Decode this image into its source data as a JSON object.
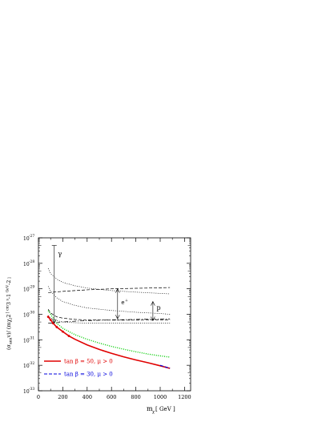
{
  "chart_data": {
    "type": "line",
    "xlabel": "m",
    "xlabel_sub": "χ",
    "xlabel_unit": " [ GeV ]",
    "ylabel_parts": [
      "(σ",
      "ann",
      "v)/ (m",
      "χ",
      ")",
      "2",
      " [ cm",
      "3",
      " s",
      "-1",
      " GeV",
      "-2",
      " ]"
    ],
    "x_ticks": [
      0,
      200,
      400,
      600,
      800,
      1000,
      1200
    ],
    "x_range": [
      0,
      1250
    ],
    "y_ticks": [
      {
        "exp": -27,
        "label": "10",
        "sup": "-27"
      },
      {
        "exp": -28,
        "label": "10",
        "sup": "-28"
      },
      {
        "exp": -29,
        "label": "10",
        "sup": "-29"
      },
      {
        "exp": -30,
        "label": "10",
        "sup": "-30"
      },
      {
        "exp": -31,
        "label": "10",
        "sup": "-31"
      },
      {
        "exp": -32,
        "label": "10",
        "sup": "-32"
      },
      {
        "exp": -33,
        "label": "10",
        "sup": "-33"
      }
    ],
    "y_range_log10": [
      -33,
      -27
    ],
    "y_scale": "log",
    "series": [
      {
        "name": "tan β = 50, μ > 0",
        "color": "#e00000",
        "style": "solid",
        "x": [
          80,
          100,
          120,
          150,
          200,
          250,
          300,
          400,
          500,
          600,
          700,
          800,
          900,
          1000,
          1080
        ],
        "log10_y": [
          -30.1,
          -30.22,
          -30.35,
          -30.5,
          -30.68,
          -30.85,
          -30.98,
          -31.2,
          -31.38,
          -31.53,
          -31.67,
          -31.79,
          -31.9,
          -32.02,
          -32.12
        ]
      },
      {
        "name": "tan β = 30, μ > 0",
        "color": "#0000dd",
        "style": "dashed",
        "x": [
          1000,
          1040,
          1080
        ],
        "log10_y": [
          -32.0,
          -32.06,
          -32.12
        ]
      },
      {
        "name": "",
        "color": "#00cc00",
        "style": "dotted",
        "x": [
          80,
          100,
          150,
          200,
          300,
          400,
          500,
          600,
          700,
          800,
          900,
          1000,
          1080
        ],
        "log10_y": [
          -29.85,
          -30.0,
          -30.35,
          -30.55,
          -30.8,
          -30.98,
          -31.13,
          -31.26,
          -31.37,
          -31.47,
          -31.56,
          -31.63,
          -31.68
        ]
      }
    ],
    "limit_curves": [
      {
        "label": "γ",
        "style": "dotted",
        "x": [
          80,
          100,
          150,
          200,
          300,
          400,
          600,
          800,
          1000,
          1080
        ],
        "log10_y": [
          -28.2,
          -28.4,
          -28.62,
          -28.75,
          -28.88,
          -28.97,
          -29.07,
          -29.13,
          -29.18,
          -29.2
        ]
      },
      {
        "label": "",
        "style": "dashed",
        "x": [
          80,
          150,
          200,
          300,
          400,
          600,
          800,
          1000,
          1080
        ],
        "log10_y": [
          -29.15,
          -29.12,
          -29.1,
          -29.07,
          -29.04,
          -29.0,
          -28.98,
          -28.96,
          -28.95
        ]
      },
      {
        "label": "e+",
        "style": "dotted",
        "x": [
          80,
          100,
          150,
          200,
          300,
          400,
          600,
          800,
          1000,
          1080
        ],
        "log10_y": [
          -28.9,
          -29.1,
          -29.35,
          -29.5,
          -29.65,
          -29.75,
          -29.85,
          -29.92,
          -29.97,
          -30.0
        ]
      },
      {
        "label": "",
        "style": "dashed",
        "x": [
          80,
          100,
          150,
          200,
          300,
          400,
          600,
          800,
          1000,
          1080
        ],
        "log10_y": [
          -29.8,
          -29.95,
          -30.1,
          -30.15,
          -30.2,
          -30.22,
          -30.23,
          -30.23,
          -30.22,
          -30.22
        ]
      },
      {
        "label": "p",
        "style": "dashdot",
        "x": [
          80,
          150,
          200,
          300,
          400,
          600,
          800,
          1000,
          1080
        ],
        "log10_y": [
          -30.35,
          -30.33,
          -30.3,
          -30.27,
          -30.25,
          -30.22,
          -30.2,
          -30.18,
          -30.18
        ]
      },
      {
        "label": "",
        "style": "dotted",
        "x": [
          80,
          100,
          150,
          200,
          300,
          400,
          600,
          800,
          1000,
          1080
        ],
        "log10_y": [
          -30.05,
          -30.15,
          -30.25,
          -30.3,
          -30.33,
          -30.35,
          -30.35,
          -30.35,
          -30.35,
          -30.35
        ]
      }
    ],
    "arrows": [
      {
        "label": "γ",
        "x": 130,
        "log10_y_top": -27.3,
        "log10_y_bottom": -30.35,
        "label_x": 160,
        "label_log10_y": -27.7
      },
      {
        "label": "e+",
        "label_main": "e",
        "label_sup": "+",
        "x": 650,
        "log10_y_top": -29.0,
        "log10_y_bottom": -30.18,
        "label_x": 680,
        "label_log10_y": -29.6
      },
      {
        "label": "p",
        "x": 940,
        "log10_y_top": -29.5,
        "log10_y_bottom": -30.25,
        "label_x": 970,
        "label_log10_y": -29.82
      }
    ],
    "legend": [
      {
        "label": "tan β = 50, μ > 0",
        "color": "#e00000",
        "style": "solid"
      },
      {
        "label": "tan β = 30, μ > 0",
        "color": "#0000dd",
        "style": "dashed"
      }
    ],
    "legend_position": "bottom-left"
  }
}
